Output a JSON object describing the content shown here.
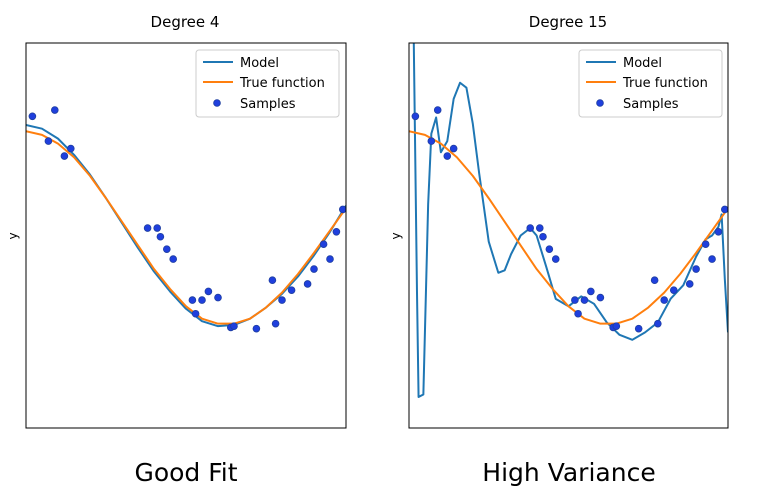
{
  "chart_data": [
    {
      "type": "line",
      "title": "Degree 4",
      "xlabel": "",
      "ylabel": "y",
      "xlim": [
        0,
        1
      ],
      "ylim": [
        -1.6,
        1.5
      ],
      "caption": "Good Fit",
      "legend": {
        "position": "top-right",
        "entries": [
          "Model",
          "True function",
          "Samples"
        ]
      },
      "colors": {
        "model": "#1f77b4",
        "true": "#ff7f0e",
        "samples": "#1f3fdd"
      },
      "true_function": {
        "x": [
          0,
          0.05,
          0.1,
          0.15,
          0.2,
          0.25,
          0.3,
          0.35,
          0.4,
          0.45,
          0.5,
          0.55,
          0.6,
          0.65,
          0.7,
          0.75,
          0.8,
          0.85,
          0.9,
          0.95,
          1.0
        ],
        "y": [
          0.79,
          0.76,
          0.69,
          0.58,
          0.43,
          0.25,
          0.06,
          -0.13,
          -0.32,
          -0.48,
          -0.62,
          -0.72,
          -0.76,
          -0.76,
          -0.72,
          -0.63,
          -0.51,
          -0.36,
          -0.19,
          -0.01,
          0.17
        ]
      },
      "model": {
        "x": [
          0,
          0.05,
          0.1,
          0.15,
          0.2,
          0.25,
          0.3,
          0.35,
          0.4,
          0.45,
          0.5,
          0.55,
          0.6,
          0.65,
          0.7,
          0.75,
          0.8,
          0.85,
          0.9,
          0.95,
          1.0
        ],
        "y": [
          0.84,
          0.81,
          0.73,
          0.6,
          0.44,
          0.25,
          0.05,
          -0.15,
          -0.34,
          -0.5,
          -0.64,
          -0.74,
          -0.78,
          -0.77,
          -0.72,
          -0.63,
          -0.52,
          -0.38,
          -0.21,
          -0.02,
          0.19
        ]
      },
      "samples": {
        "x": [
          0.02,
          0.07,
          0.09,
          0.12,
          0.14,
          0.38,
          0.41,
          0.42,
          0.44,
          0.46,
          0.52,
          0.53,
          0.55,
          0.57,
          0.6,
          0.64,
          0.65,
          0.72,
          0.77,
          0.78,
          0.8,
          0.83,
          0.88,
          0.9,
          0.93,
          0.95,
          0.97,
          0.99
        ],
        "y": [
          0.91,
          0.71,
          0.96,
          0.59,
          0.65,
          0.01,
          0.01,
          -0.06,
          -0.16,
          -0.24,
          -0.57,
          -0.68,
          -0.57,
          -0.5,
          -0.55,
          -0.79,
          -0.78,
          -0.8,
          -0.41,
          -0.76,
          -0.57,
          -0.49,
          -0.44,
          -0.32,
          -0.12,
          -0.24,
          -0.02,
          0.16
        ]
      }
    },
    {
      "type": "line",
      "title": "Degree 15",
      "xlabel": "",
      "ylabel": "y",
      "xlim": [
        0,
        1
      ],
      "ylim": [
        -1.6,
        1.5
      ],
      "caption": "High Variance",
      "legend": {
        "position": "top-right",
        "entries": [
          "Model",
          "True function",
          "Samples"
        ]
      },
      "colors": {
        "model": "#1f77b4",
        "true": "#ff7f0e",
        "samples": "#1f3fdd"
      },
      "true_function": {
        "x": [
          0,
          0.05,
          0.1,
          0.15,
          0.2,
          0.25,
          0.3,
          0.35,
          0.4,
          0.45,
          0.5,
          0.55,
          0.6,
          0.65,
          0.7,
          0.75,
          0.8,
          0.85,
          0.9,
          0.95,
          1.0
        ],
        "y": [
          0.79,
          0.76,
          0.69,
          0.58,
          0.43,
          0.25,
          0.06,
          -0.13,
          -0.32,
          -0.48,
          -0.62,
          -0.72,
          -0.76,
          -0.76,
          -0.72,
          -0.63,
          -0.51,
          -0.36,
          -0.19,
          -0.01,
          0.17
        ]
      },
      "model": {
        "x": [
          0.015,
          0.025,
          0.03,
          0.045,
          0.06,
          0.07,
          0.085,
          0.1,
          0.12,
          0.14,
          0.16,
          0.18,
          0.2,
          0.22,
          0.25,
          0.28,
          0.3,
          0.32,
          0.35,
          0.38,
          0.4,
          0.43,
          0.46,
          0.5,
          0.54,
          0.58,
          0.62,
          0.66,
          0.7,
          0.74,
          0.78,
          0.82,
          0.86,
          0.9,
          0.93,
          0.95,
          0.97,
          0.98,
          0.99,
          1.0
        ],
        "y": [
          1.5,
          -0.5,
          -1.35,
          -1.33,
          0.2,
          0.77,
          0.9,
          0.62,
          0.71,
          1.05,
          1.18,
          1.14,
          0.85,
          0.45,
          -0.1,
          -0.35,
          -0.33,
          -0.2,
          -0.05,
          0.01,
          -0.05,
          -0.3,
          -0.56,
          -0.62,
          -0.54,
          -0.6,
          -0.75,
          -0.85,
          -0.89,
          -0.83,
          -0.75,
          -0.56,
          -0.45,
          -0.22,
          -0.08,
          -0.05,
          0.02,
          0.12,
          -0.4,
          -0.83
        ]
      },
      "samples": {
        "x": [
          0.02,
          0.07,
          0.09,
          0.12,
          0.14,
          0.38,
          0.41,
          0.42,
          0.44,
          0.46,
          0.52,
          0.53,
          0.55,
          0.57,
          0.6,
          0.64,
          0.65,
          0.72,
          0.77,
          0.78,
          0.8,
          0.83,
          0.88,
          0.9,
          0.93,
          0.95,
          0.97,
          0.99
        ],
        "y": [
          0.91,
          0.71,
          0.96,
          0.59,
          0.65,
          0.01,
          0.01,
          -0.06,
          -0.16,
          -0.24,
          -0.57,
          -0.68,
          -0.57,
          -0.5,
          -0.55,
          -0.79,
          -0.78,
          -0.8,
          -0.41,
          -0.76,
          -0.57,
          -0.49,
          -0.44,
          -0.32,
          -0.12,
          -0.24,
          -0.02,
          0.16
        ]
      }
    }
  ]
}
